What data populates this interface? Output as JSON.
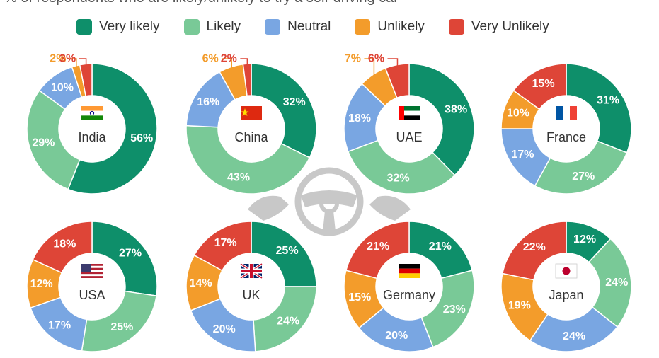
{
  "subtitle": "% of respondents who are likely/unlikely to try a self-driving car",
  "colors": {
    "very_likely": "#0e8f6a",
    "likely": "#79c997",
    "neutral": "#79a6e2",
    "unlikely": "#f39c2b",
    "very_unlikely": "#de4537"
  },
  "icons": {
    "center": "steering-wheel-hands-icon"
  },
  "chart_data": {
    "type": "pie",
    "categories": [
      "Very likely",
      "Likely",
      "Neutral",
      "Unlikely",
      "Very Unlikely"
    ],
    "series": [
      {
        "name": "India",
        "flag": "india-flag-icon",
        "values": [
          56,
          29,
          10,
          2,
          3
        ]
      },
      {
        "name": "China",
        "flag": "china-flag-icon",
        "values": [
          32,
          43,
          16,
          6,
          2
        ]
      },
      {
        "name": "UAE",
        "flag": "uae-flag-icon",
        "values": [
          38,
          32,
          18,
          7,
          6
        ]
      },
      {
        "name": "France",
        "flag": "france-flag-icon",
        "values": [
          31,
          27,
          17,
          10,
          15
        ]
      },
      {
        "name": "USA",
        "flag": "usa-flag-icon",
        "values": [
          27,
          25,
          17,
          12,
          18
        ]
      },
      {
        "name": "UK",
        "flag": "uk-flag-icon",
        "values": [
          25,
          24,
          20,
          14,
          17
        ]
      },
      {
        "name": "Germany",
        "flag": "germany-flag-icon",
        "values": [
          21,
          23,
          20,
          15,
          21
        ]
      },
      {
        "name": "Japan",
        "flag": "japan-flag-icon",
        "values": [
          12,
          24,
          24,
          19,
          22
        ]
      }
    ],
    "legend_position": "top"
  }
}
